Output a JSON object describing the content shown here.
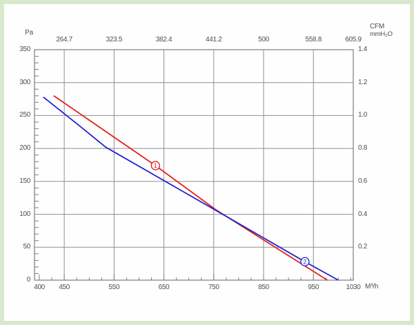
{
  "frame": {
    "color": "#d9e8cb",
    "background": "#ffffff"
  },
  "units": {
    "pa": "Pa",
    "cfm": "CFM",
    "mmh2o": "mmH₂O",
    "m3h": "M³/h"
  },
  "chart_data": {
    "type": "line",
    "title": "",
    "grid": true,
    "x_axis_bottom": {
      "unit": "M³/h",
      "range": [
        400,
        1030
      ],
      "tick_labels": [
        "400",
        "450",
        "550",
        "650",
        "750",
        "850",
        "950",
        "1030"
      ],
      "tick_values": [
        400,
        450,
        550,
        650,
        750,
        850,
        950,
        1030
      ],
      "minor_tick_step": 25
    },
    "x_axis_top": {
      "unit": "CFM",
      "tick_labels": [
        "264.7",
        "323.5",
        "382.4",
        "441.2",
        "500",
        "558.8",
        "605.9"
      ],
      "tick_positions_m3h": [
        450,
        550,
        650,
        750,
        850,
        950,
        1030
      ]
    },
    "y_axis_left": {
      "unit": "Pa",
      "range": [
        0,
        350
      ],
      "tick_labels": [
        "350",
        "300",
        "250",
        "200",
        "150",
        "100",
        "50",
        "0"
      ],
      "tick_values": [
        350,
        300,
        250,
        200,
        150,
        100,
        50,
        0
      ],
      "minor_tick_step": 10
    },
    "y_axis_right": {
      "unit": "mmH₂O",
      "tick_labels": [
        "1.4",
        "1.2",
        "1.0",
        "0.8",
        "0.6",
        "0.4",
        "0.2"
      ],
      "tick_positions_pa": [
        350,
        300,
        250,
        200,
        150,
        100,
        50
      ]
    },
    "gridlines": {
      "vertical_m3h": [
        450,
        550,
        650,
        750,
        850,
        950
      ],
      "horizontal_pa": [
        50,
        100,
        150,
        200,
        250,
        300
      ]
    },
    "series": [
      {
        "id": "1",
        "label": "1",
        "color": "#e3201b",
        "points": [
          [
            429,
            280
          ],
          [
            633,
            174
          ],
          [
            754,
            107
          ],
          [
            978,
            0
          ]
        ],
        "marker": {
          "x": 633,
          "y": 174
        }
      },
      {
        "id": "2",
        "label": "2",
        "color": "#2023cc",
        "points": [
          [
            408,
            278
          ],
          [
            478,
            236
          ],
          [
            533,
            202
          ],
          [
            754,
            106
          ],
          [
            933,
            28
          ],
          [
            1000,
            0
          ]
        ],
        "marker": {
          "x": 933,
          "y": 28
        }
      }
    ]
  }
}
